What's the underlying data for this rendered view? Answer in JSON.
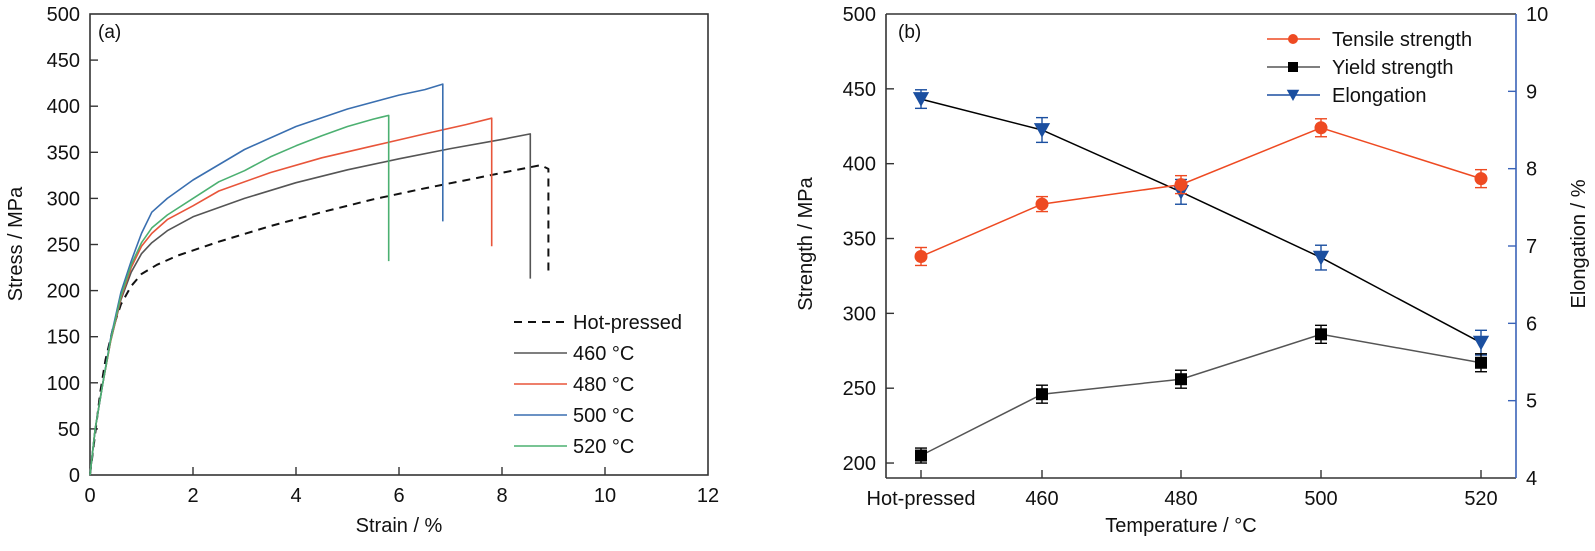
{
  "chart_data": [
    {
      "type": "line",
      "panel_label": "(a)",
      "xlabel": "Strain / %",
      "ylabel": "Stress / MPa",
      "xlim": [
        0,
        12
      ],
      "ylim": [
        0,
        500
      ],
      "xticks": [
        0,
        2,
        4,
        6,
        8,
        10,
        12
      ],
      "yticks": [
        0,
        50,
        100,
        150,
        200,
        250,
        300,
        350,
        400,
        450,
        500
      ],
      "grid": false,
      "legend_position": "bottom-right",
      "series": [
        {
          "name": "Hot-pressed",
          "color": "#111111",
          "dashed": true,
          "points": [
            [
              0,
              0
            ],
            [
              0.1,
              45
            ],
            [
              0.2,
              90
            ],
            [
              0.3,
              125
            ],
            [
              0.45,
              160
            ],
            [
              0.6,
              185
            ],
            [
              0.8,
              205
            ],
            [
              1.0,
              218
            ],
            [
              1.3,
              228
            ],
            [
              1.7,
              238
            ],
            [
              2.5,
              253
            ],
            [
              3.5,
              270
            ],
            [
              4.5,
              285
            ],
            [
              5.5,
              299
            ],
            [
              6.5,
              311
            ],
            [
              7.5,
              322
            ],
            [
              8.2,
              330
            ],
            [
              8.75,
              336
            ],
            [
              8.9,
              332
            ],
            [
              8.9,
              220
            ]
          ]
        },
        {
          "name": "460 °C",
          "color": "#555555",
          "dashed": false,
          "points": [
            [
              0,
              0
            ],
            [
              0.1,
              50
            ],
            [
              0.25,
              100
            ],
            [
              0.4,
              145
            ],
            [
              0.6,
              190
            ],
            [
              0.8,
              220
            ],
            [
              1.0,
              240
            ],
            [
              1.2,
              252
            ],
            [
              1.5,
              265
            ],
            [
              2.0,
              280
            ],
            [
              3.0,
              300
            ],
            [
              4.0,
              317
            ],
            [
              5.0,
              331
            ],
            [
              6.0,
              343
            ],
            [
              7.0,
              354
            ],
            [
              8.0,
              364
            ],
            [
              8.55,
              370
            ],
            [
              8.55,
              213
            ]
          ]
        },
        {
          "name": "480 °C",
          "color": "#e8553a",
          "dashed": false,
          "points": [
            [
              0,
              0
            ],
            [
              0.1,
              50
            ],
            [
              0.25,
              100
            ],
            [
              0.4,
              145
            ],
            [
              0.6,
              192
            ],
            [
              0.8,
              225
            ],
            [
              1.0,
              248
            ],
            [
              1.2,
              262
            ],
            [
              1.5,
              277
            ],
            [
              2.0,
              292
            ],
            [
              2.5,
              308
            ],
            [
              3.5,
              328
            ],
            [
              4.5,
              344
            ],
            [
              5.5,
              357
            ],
            [
              6.5,
              370
            ],
            [
              7.3,
              380
            ],
            [
              7.8,
              387
            ],
            [
              7.8,
              248
            ]
          ]
        },
        {
          "name": "500 °C",
          "color": "#3a6fb0",
          "dashed": false,
          "points": [
            [
              0,
              0
            ],
            [
              0.1,
              50
            ],
            [
              0.25,
              100
            ],
            [
              0.4,
              148
            ],
            [
              0.6,
              198
            ],
            [
              0.8,
              232
            ],
            [
              1.0,
              262
            ],
            [
              1.2,
              285
            ],
            [
              1.5,
              300
            ],
            [
              2.0,
              320
            ],
            [
              3.0,
              353
            ],
            [
              4.0,
              378
            ],
            [
              5.0,
              397
            ],
            [
              6.0,
              412
            ],
            [
              6.5,
              418
            ],
            [
              6.85,
              424
            ],
            [
              6.85,
              275
            ]
          ]
        },
        {
          "name": "520 °C",
          "color": "#4cb071",
          "dashed": false,
          "points": [
            [
              0,
              0
            ],
            [
              0.1,
              50
            ],
            [
              0.25,
              100
            ],
            [
              0.4,
              146
            ],
            [
              0.6,
              194
            ],
            [
              0.8,
              228
            ],
            [
              1.0,
              252
            ],
            [
              1.2,
              268
            ],
            [
              1.5,
              282
            ],
            [
              2.0,
              300
            ],
            [
              2.5,
              318
            ],
            [
              3.0,
              330
            ],
            [
              3.5,
              345
            ],
            [
              4.0,
              357
            ],
            [
              4.5,
              368
            ],
            [
              5.0,
              378
            ],
            [
              5.5,
              386
            ],
            [
              5.8,
              390
            ],
            [
              5.8,
              232
            ]
          ]
        }
      ]
    },
    {
      "type": "line",
      "panel_label": "(b)",
      "xlabel": "Temperature / °C",
      "ylabel": "Strength / MPa",
      "y2label": "Elongation / %",
      "categories": [
        "Hot-pressed",
        "460",
        "480",
        "500",
        "520"
      ],
      "ylim": [
        190,
        500
      ],
      "yticks": [
        200,
        250,
        300,
        350,
        400,
        450,
        500
      ],
      "y2lim": [
        4,
        10
      ],
      "y2ticks": [
        4,
        5,
        6,
        7,
        8,
        9,
        10
      ],
      "grid": false,
      "legend_position": "top-right",
      "series": [
        {
          "name": "Tensile strength",
          "axis": "left",
          "marker": "circle",
          "color": "#ee4a22",
          "line_color": "#ee4a22",
          "values": [
            338,
            373,
            386,
            424,
            390
          ],
          "errors": [
            6,
            5,
            6,
            6,
            6
          ]
        },
        {
          "name": "Yield strength",
          "axis": "left",
          "marker": "square",
          "color": "#000000",
          "line_color": "#555555",
          "values": [
            205,
            246,
            256,
            286,
            267
          ],
          "errors": [
            5,
            6,
            6,
            6,
            6
          ]
        },
        {
          "name": "Elongation",
          "axis": "right",
          "marker": "triangle-down",
          "color": "#1b4fa0",
          "line_color": "#000000",
          "values": [
            8.9,
            8.5,
            7.7,
            6.85,
            5.75
          ],
          "errors": [
            0.12,
            0.16,
            0.16,
            0.16,
            0.16
          ]
        }
      ]
    }
  ]
}
